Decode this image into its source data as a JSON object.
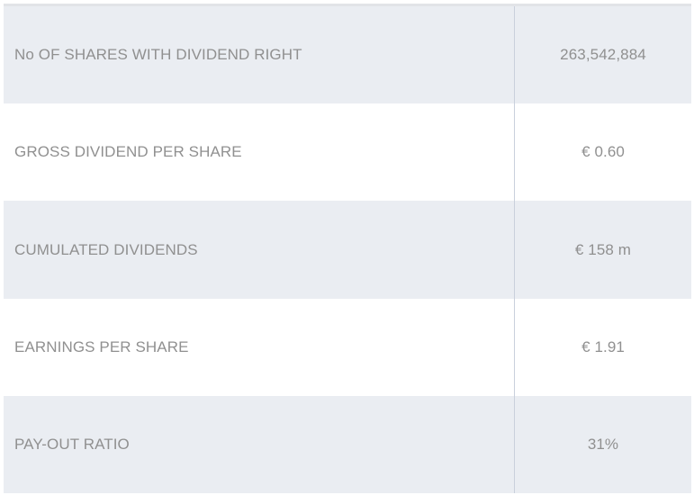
{
  "table": {
    "rows": [
      {
        "label": "No OF SHARES WITH DIVIDEND RIGHT",
        "value": "263,542,884"
      },
      {
        "label": "GROSS DIVIDEND PER SHARE",
        "value": "€ 0.60"
      },
      {
        "label": "CUMULATED DIVIDENDS",
        "value": "€ 158 m"
      },
      {
        "label": "EARNINGS PER SHARE",
        "value": "€ 1.91"
      },
      {
        "label": "PAY-OUT RATIO",
        "value": "31%"
      }
    ]
  },
  "colors": {
    "shaded_row": "#eaedf2",
    "text": "#909090",
    "divider": "#c9d0dc"
  }
}
